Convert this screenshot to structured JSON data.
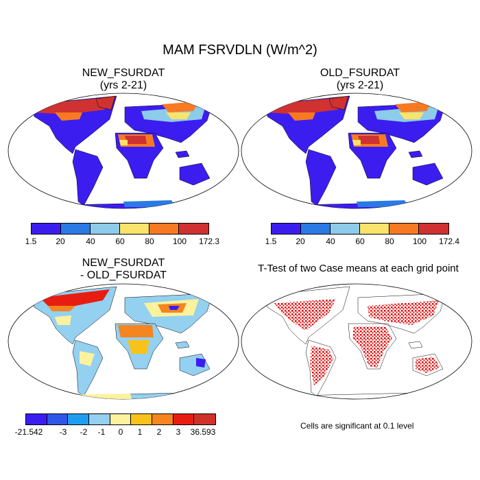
{
  "title": "MAM FSRVDLN (W/m^2)",
  "panels": [
    {
      "title_line1": "NEW_FSURDAT",
      "title_line2": "(yrs 2-21)"
    },
    {
      "title_line1": "OLD_FSURDAT",
      "title_line2": "(yrs 2-21)"
    },
    {
      "title_line1": "NEW_FSURDAT",
      "title_line2": "- OLD_FSURDAT"
    },
    {
      "title_line1": "T-Test of two Case means at each grid point",
      "title_line2": ""
    }
  ],
  "colorbars": [
    {
      "colors": [
        "#3c1df0",
        "#2a7ae4",
        "#8ccbea",
        "#fbe46b",
        "#f77a22",
        "#cf3230"
      ],
      "labels": [
        "1.5",
        "20",
        "40",
        "60",
        "80",
        "100",
        "172.3"
      ]
    },
    {
      "colors": [
        "#3c1df0",
        "#2a7ae4",
        "#8ccbea",
        "#fbe46b",
        "#f77a22",
        "#cf3230"
      ],
      "labels": [
        "1.5",
        "20",
        "40",
        "60",
        "80",
        "100",
        "172.4"
      ]
    },
    {
      "colors": [
        "#3b1df2",
        "#2f58e8",
        "#1f9ef0",
        "#94d0f0",
        "#fbf29e",
        "#f9c21b",
        "#f4851f",
        "#e81d12",
        "#d0322b"
      ],
      "labels": [
        "-21.542",
        "-3",
        "-2",
        "-1",
        "0",
        "1",
        "2",
        "3",
        "36.593"
      ]
    }
  ],
  "note": "Cells are significant at 0.1 level"
}
